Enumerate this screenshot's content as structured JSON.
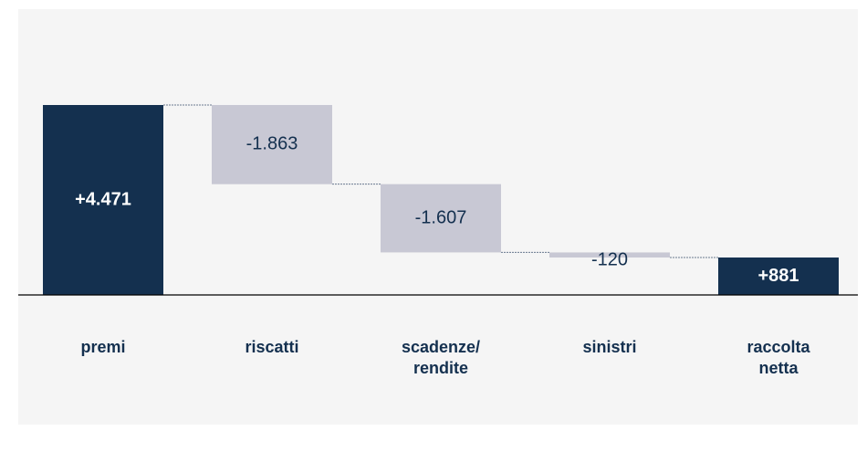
{
  "chart_data": {
    "type": "waterfall",
    "categories": [
      "premi",
      "riscatti",
      "scadenze/ rendite",
      "sinistri",
      "raccolta netta"
    ],
    "values": [
      4471,
      -1863,
      -1607,
      -120,
      881
    ],
    "value_labels": [
      "+4.471",
      "-1.863",
      "-1.607",
      "-120",
      "+881"
    ],
    "colors": [
      "#14304f",
      "#c8c8d4",
      "#c8c8d4",
      "#c8c8d4",
      "#14304f"
    ]
  }
}
